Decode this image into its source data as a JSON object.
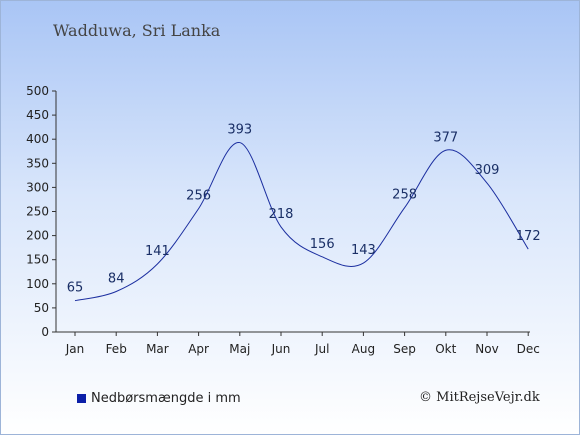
{
  "chart_data": {
    "type": "line",
    "title": "Wadduwa, Sri Lanka",
    "categories": [
      "Jan",
      "Feb",
      "Mar",
      "Apr",
      "Maj",
      "Jun",
      "Jul",
      "Aug",
      "Sep",
      "Okt",
      "Nov",
      "Dec"
    ],
    "series": [
      {
        "name": "Nedbørsmængde i mm",
        "values": [
          65,
          84,
          141,
          256,
          393,
          218,
          156,
          143,
          258,
          377,
          309,
          172
        ]
      }
    ],
    "ylim": [
      0,
      500
    ],
    "yticks": [
      "0",
      "50",
      "100",
      "150",
      "200",
      "250",
      "300",
      "350",
      "400",
      "450",
      "500"
    ],
    "grid": false,
    "legend_position": "bottom-left",
    "colors": {
      "line": "#1c2fa0",
      "swatch": "#0b1fa8"
    }
  },
  "copyright": "© MitRejseVejr.dk"
}
